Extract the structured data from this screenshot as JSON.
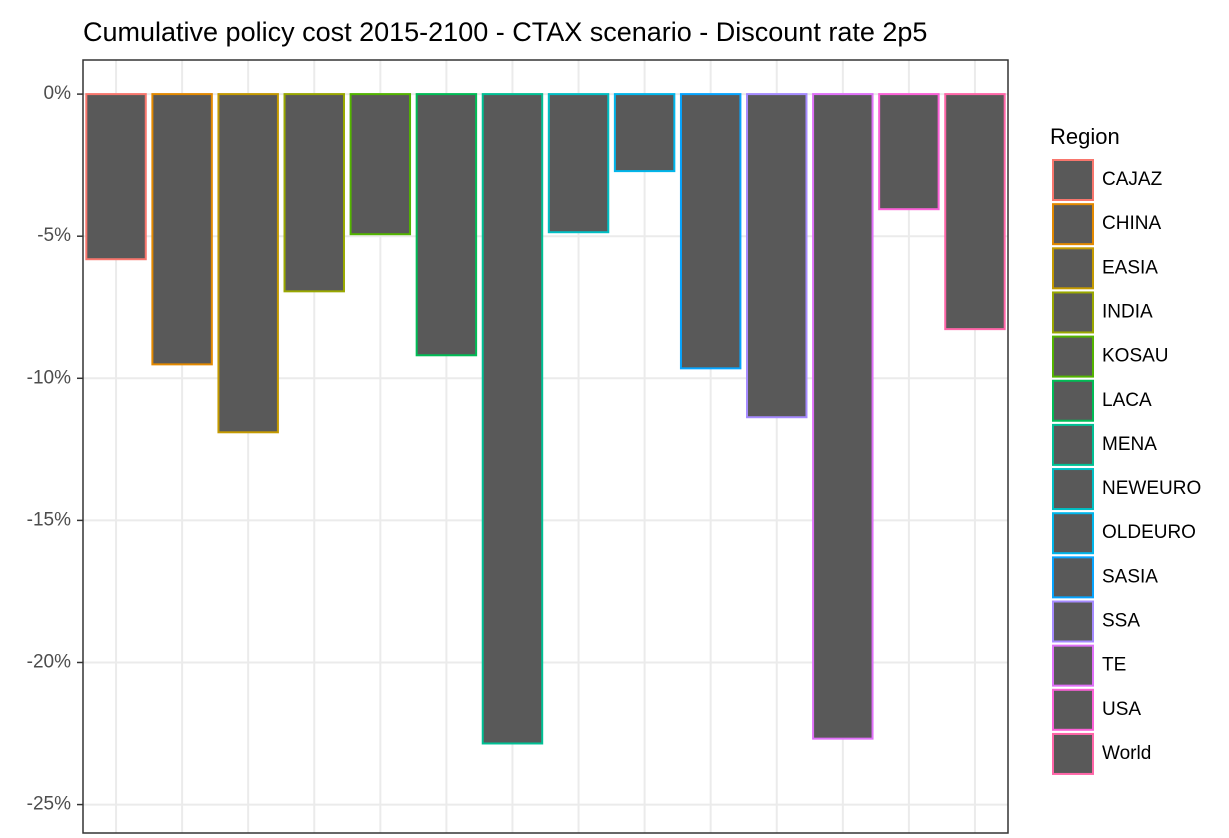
{
  "chart_data": {
    "type": "bar",
    "title": "Cumulative policy cost 2015-2100 - CTAX scenario - Discount rate 2p5",
    "legend_title": "Region",
    "categories": [
      "CAJAZ",
      "CHINA",
      "EASIA",
      "INDIA",
      "KOSAU",
      "LACA",
      "MENA",
      "NEWEURO",
      "OLDEURO",
      "SASIA",
      "SSA",
      "TE",
      "USA",
      "World"
    ],
    "values": [
      -5.81,
      -9.51,
      -11.9,
      -6.94,
      -4.93,
      -9.19,
      -22.85,
      -4.86,
      -2.71,
      -9.65,
      -11.37,
      -22.68,
      -4.05,
      -8.27
    ],
    "colors": [
      "#F8766D",
      "#E38900",
      "#C49A00",
      "#99A800",
      "#53B400",
      "#00BC56",
      "#00C094",
      "#00BFC4",
      "#00B6EB",
      "#06A4FF",
      "#A58AFF",
      "#DF70F8",
      "#FB61D7",
      "#FF66A8"
    ],
    "fill": "#595959",
    "ylim": [
      -26,
      1.2
    ],
    "yticks": [
      {
        "value": 0,
        "label": "0%"
      },
      {
        "value": -5,
        "label": "-5%"
      },
      {
        "value": -10,
        "label": "-10%"
      },
      {
        "value": -15,
        "label": "-15%"
      },
      {
        "value": -20,
        "label": "-20%"
      },
      {
        "value": -25,
        "label": "-25%"
      }
    ],
    "grid": true,
    "legend_position": "right"
  }
}
